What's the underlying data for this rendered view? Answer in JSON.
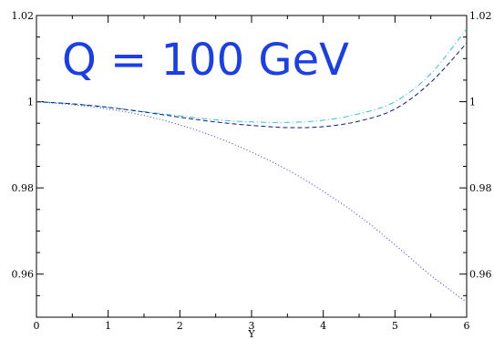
{
  "chart_data": {
    "type": "line",
    "xlabel": "Y",
    "ylabel": "",
    "xlim": [
      0,
      6
    ],
    "ylim": [
      0.95,
      1.02
    ],
    "xticks": [
      0,
      1,
      2,
      3,
      4,
      5,
      6
    ],
    "yticks": [
      0.96,
      0.98,
      1,
      1.02
    ],
    "xtick_labels": [
      "0",
      "1",
      "2",
      "3",
      "4",
      "5",
      "6"
    ],
    "ytick_labels": [
      "0.96",
      "0.98",
      "1",
      "1.02"
    ],
    "right_ytick_labels": [
      "0.96",
      "0.98",
      "1",
      "1.02"
    ],
    "grid": false,
    "annotation": {
      "text": "Q = 100 GeV",
      "color": "#1a3ee8"
    },
    "series": [
      {
        "color": "#2bc3d8",
        "style": "dash-dot",
        "x": [
          0,
          0.5,
          1,
          1.5,
          2,
          2.5,
          3,
          3.5,
          4,
          4.5,
          5,
          5.5,
          6
        ],
        "y": [
          1.0,
          0.9995,
          0.9987,
          0.9977,
          0.9967,
          0.9958,
          0.9953,
          0.9952,
          0.9957,
          0.9972,
          1.0,
          1.0065,
          1.0169
        ]
      },
      {
        "color": "#0a1a8c",
        "style": "dashed",
        "x": [
          0,
          0.5,
          1,
          1.5,
          2,
          2.5,
          3,
          3.5,
          4,
          4.5,
          5,
          5.5,
          6
        ],
        "y": [
          1.0,
          0.9995,
          0.9987,
          0.9976,
          0.9964,
          0.9953,
          0.9945,
          0.994,
          0.9942,
          0.9955,
          0.9983,
          1.0045,
          1.0136
        ]
      },
      {
        "color": "#2a35c8",
        "style": "dotted",
        "x": [
          0,
          0.5,
          1,
          1.5,
          2,
          2.5,
          3,
          3.5,
          4,
          4.5,
          5,
          5.5,
          6
        ],
        "y": [
          1.0,
          0.9993,
          0.9983,
          0.9968,
          0.9946,
          0.9918,
          0.9883,
          0.9842,
          0.9792,
          0.9735,
          0.9668,
          0.9597,
          0.9535
        ]
      }
    ]
  }
}
